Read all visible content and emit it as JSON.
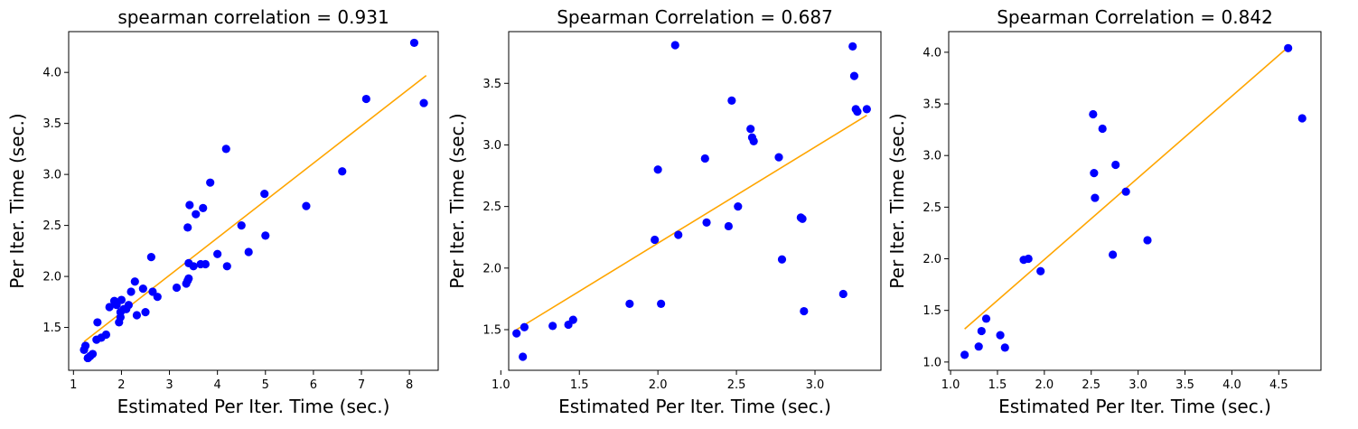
{
  "chart_data": [
    {
      "type": "scatter",
      "title": "spearman correlation = 0.931",
      "xlabel": "Estimated Per Iter. Time (sec.)",
      "ylabel": "Per Iter. Time (sec.)",
      "xlim": [
        0.9,
        8.6
      ],
      "ylim": [
        1.08,
        4.4
      ],
      "xticks": [
        1,
        2,
        3,
        4,
        5,
        6,
        7,
        8
      ],
      "yticks": [
        1.5,
        2.0,
        2.5,
        3.0,
        3.5,
        4.0
      ],
      "x": [
        1.25,
        1.3,
        1.35,
        1.4,
        1.48,
        1.5,
        1.58,
        1.68,
        1.75,
        1.85,
        1.88,
        1.9,
        1.95,
        1.98,
        2.0,
        2.05,
        2.1,
        2.15,
        2.2,
        2.28,
        2.32,
        2.45,
        2.5,
        2.62,
        2.65,
        2.75,
        3.15,
        3.35,
        3.38,
        3.4,
        3.42,
        3.5,
        3.55,
        3.65,
        3.7,
        3.75,
        3.85,
        4.0,
        4.18,
        4.2,
        4.5,
        4.65,
        4.98,
        5.0,
        5.85,
        6.6,
        7.1,
        8.1,
        8.3,
        1.22,
        1.3,
        1.98,
        3.38,
        3.4
      ],
      "y": [
        1.32,
        1.2,
        1.22,
        1.24,
        1.38,
        1.55,
        1.4,
        1.43,
        1.7,
        1.76,
        1.75,
        1.72,
        1.55,
        1.65,
        1.77,
        1.68,
        1.68,
        1.72,
        1.85,
        1.95,
        1.62,
        1.88,
        1.65,
        2.19,
        1.85,
        1.8,
        1.89,
        1.93,
        2.48,
        2.13,
        2.7,
        2.1,
        2.61,
        2.12,
        2.67,
        2.12,
        2.92,
        2.22,
        3.25,
        2.1,
        2.5,
        2.24,
        2.81,
        2.4,
        2.69,
        3.03,
        3.74,
        4.29,
        3.7,
        1.28,
        1.2,
        1.6,
        1.96,
        1.98
      ],
      "fit_line": {
        "x": [
          1.22,
          8.35
        ],
        "y": [
          1.36,
          3.97
        ]
      },
      "point_color": "#0000ff",
      "line_color": "#ffa500"
    },
    {
      "type": "scatter",
      "title": "Spearman Correlation = 0.687",
      "xlabel": "Estimated Per Iter. Time (sec.)",
      "ylabel": "Per Iter. Time (sec.)",
      "xlim": [
        1.05,
        3.42
      ],
      "ylim": [
        1.17,
        3.92
      ],
      "xticks": [
        1.0,
        1.5,
        2.0,
        2.5,
        3.0
      ],
      "yticks": [
        1.5,
        2.0,
        2.5,
        3.0,
        3.5
      ],
      "x": [
        1.1,
        1.14,
        1.15,
        1.33,
        1.43,
        1.46,
        1.82,
        1.98,
        2.0,
        2.02,
        2.11,
        2.13,
        2.3,
        2.31,
        2.45,
        2.47,
        2.51,
        2.59,
        2.6,
        2.61,
        2.77,
        2.79,
        2.91,
        2.92,
        2.93,
        3.18,
        3.24,
        3.25,
        3.26,
        3.27,
        3.33
      ],
      "y": [
        1.47,
        1.28,
        1.52,
        1.53,
        1.54,
        1.58,
        1.71,
        2.23,
        2.8,
        1.71,
        3.81,
        2.27,
        2.89,
        2.37,
        2.34,
        3.36,
        2.5,
        3.13,
        3.06,
        3.03,
        2.9,
        2.07,
        2.41,
        2.4,
        1.65,
        1.79,
        3.8,
        3.56,
        3.29,
        3.27,
        3.29
      ],
      "fit_line": {
        "x": [
          1.1,
          3.33
        ],
        "y": [
          1.5,
          3.24
        ]
      },
      "point_color": "#0000ff",
      "line_color": "#ffa500"
    },
    {
      "type": "scatter",
      "title": "Spearman Correlation = 0.842",
      "xlabel": "Estimated Per Iter. Time (sec.)",
      "ylabel": "Per Iter. Time (sec.)",
      "xlim": [
        0.98,
        4.95
      ],
      "ylim": [
        0.92,
        4.2
      ],
      "xticks": [
        1.0,
        1.5,
        2.0,
        2.5,
        3.0,
        3.5,
        4.0,
        4.5
      ],
      "yticks": [
        1.0,
        1.5,
        2.0,
        2.5,
        3.0,
        3.5,
        4.0
      ],
      "x": [
        1.15,
        1.3,
        1.33,
        1.38,
        1.53,
        1.58,
        1.78,
        1.83,
        1.96,
        2.52,
        2.53,
        2.54,
        2.62,
        2.73,
        2.76,
        2.87,
        3.1,
        4.6,
        4.75
      ],
      "y": [
        1.07,
        1.15,
        1.3,
        1.42,
        1.26,
        1.14,
        1.99,
        2.0,
        1.88,
        3.4,
        2.83,
        2.59,
        3.26,
        2.04,
        2.91,
        2.65,
        2.18,
        4.04,
        3.36
      ],
      "fit_line": {
        "x": [
          1.15,
          4.6
        ],
        "y": [
          1.32,
          4.05
        ]
      },
      "point_color": "#0000ff",
      "line_color": "#ffa500"
    }
  ]
}
